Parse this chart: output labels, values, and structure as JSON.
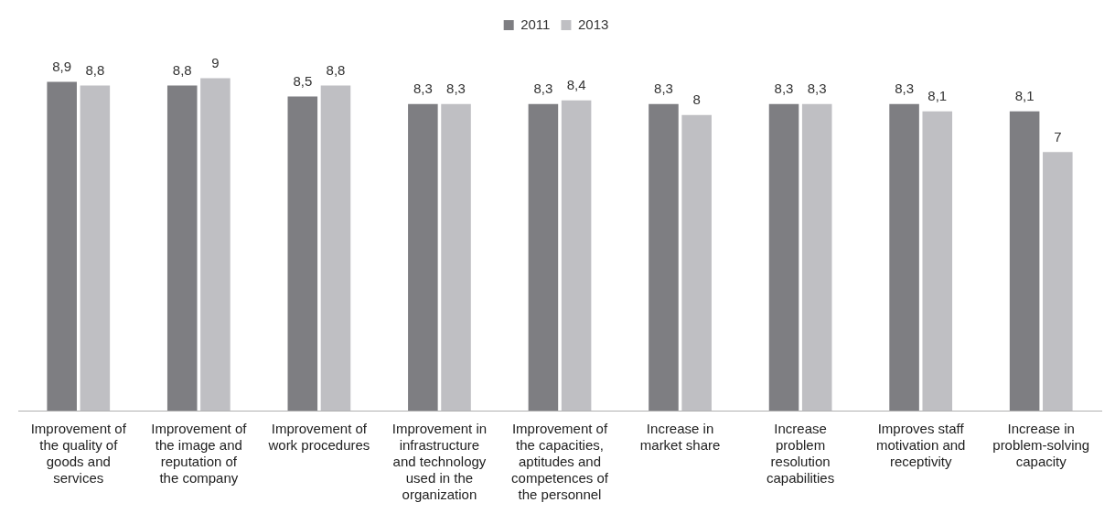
{
  "chart_data": {
    "type": "bar",
    "categories": [
      "Improvement of the quality of goods and services",
      "Improvement of the image and reputation of the company",
      "Improvement of work procedures",
      "Improvement in infrastructure and technology used in the organization",
      "Improvement of the capacities, aptitudes and competences of the personnel",
      "Increase in market share",
      "Increase problem resolution capabilities",
      "Improves staff motivation and receptivity",
      "Increase in problem-solving capacity"
    ],
    "series": [
      {
        "name": "2011",
        "color": "#7e7e82",
        "values": [
          8.9,
          8.8,
          8.5,
          8.3,
          8.3,
          8.3,
          8.3,
          8.3,
          8.1
        ],
        "value_labels": [
          "8,9",
          "8,8",
          "8,5",
          "8,3",
          "8,3",
          "8,3",
          "8,3",
          "8,3",
          "8,1"
        ]
      },
      {
        "name": "2013",
        "color": "#bfbfc3",
        "values": [
          8.8,
          9,
          8.8,
          8.3,
          8.4,
          8,
          8.3,
          8.1,
          7
        ],
        "value_labels": [
          "8,8",
          "9",
          "8,8",
          "8,3",
          "8,4",
          "8",
          "8,3",
          "8,1",
          "7"
        ]
      }
    ],
    "tick_labels": "x",
    "grid": false,
    "legend": "top"
  }
}
